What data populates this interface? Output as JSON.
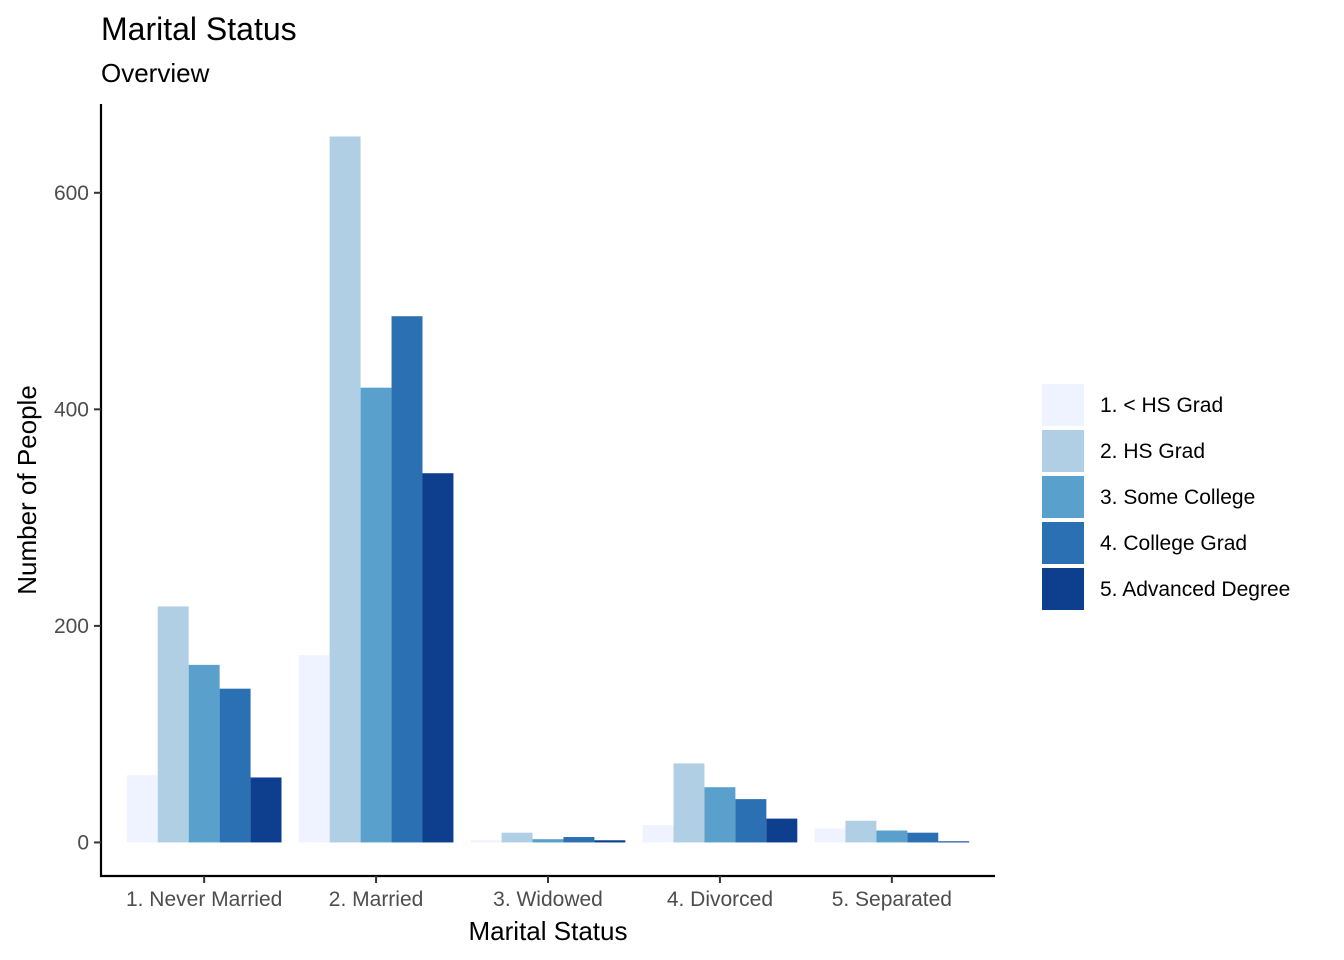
{
  "chart_data": {
    "type": "bar",
    "title": "Marital Status",
    "subtitle": "Overview",
    "xlabel": "Marital Status",
    "ylabel": "Number of People",
    "categories": [
      "1. Never Married",
      "2. Married",
      "3. Widowed",
      "4. Divorced",
      "5. Separated"
    ],
    "series": [
      {
        "name": "1. < HS Grad",
        "color": "#eff3ff",
        "values": [
          62,
          173,
          2,
          16,
          13
        ]
      },
      {
        "name": "2. HS Grad",
        "color": "#b1cfe4",
        "values": [
          218,
          652,
          9,
          73,
          20
        ]
      },
      {
        "name": "3. Some College",
        "color": "#5aa0cd",
        "values": [
          164,
          420,
          3,
          51,
          11
        ]
      },
      {
        "name": "4. College Grad",
        "color": "#2a70b3",
        "values": [
          142,
          486,
          5,
          40,
          9
        ]
      },
      {
        "name": "5. Advanced Degree",
        "color": "#0d3f8e",
        "values": [
          60,
          341,
          2,
          22,
          1
        ]
      }
    ],
    "yticks": [
      0,
      200,
      400,
      600
    ],
    "ylim": [
      -31,
      682
    ],
    "grid": false,
    "legend_position": "right"
  }
}
